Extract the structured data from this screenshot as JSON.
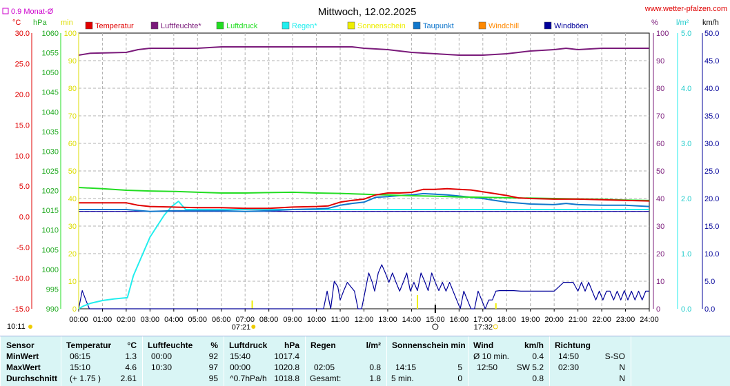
{
  "header": {
    "title": "Mittwoch, 12.02.2025",
    "site": "www.wetter-pfalzen.com",
    "month_avg_label": "0.9 Monat-Ø"
  },
  "colors": {
    "temperature": "#e00000",
    "humidity": "#7a1a7a",
    "pressure": "#22dd22",
    "rain": "#22eeee",
    "sunshine": "#eeee00",
    "dewpoint": "#1177cc",
    "windchill": "#ff8800",
    "gusts": "#000099",
    "wind": "#000099"
  },
  "legend": [
    {
      "key": "temperature",
      "label": "Temperatur"
    },
    {
      "key": "humidity",
      "label": "Luftfeuchte*"
    },
    {
      "key": "pressure",
      "label": "Luftdruck"
    },
    {
      "key": "rain",
      "label": "Regen*"
    },
    {
      "key": "sunshine",
      "label": "Sonnenschein"
    },
    {
      "key": "dewpoint",
      "label": "Taupunkt"
    },
    {
      "key": "windchill",
      "label": "Windchill"
    },
    {
      "key": "gusts",
      "label": "Windböen"
    }
  ],
  "axes": {
    "temp": {
      "unit": "°C",
      "min": -15,
      "max": 30,
      "ticks": [
        "30.0",
        "25.0",
        "20.0",
        "15.0",
        "10.0",
        "5.0",
        "0.0",
        "-5.0",
        "-10.0",
        "-15.0"
      ]
    },
    "pressure": {
      "unit": "hPa",
      "min": 990,
      "max": 1060,
      "ticks": [
        "1060",
        "1055",
        "1050",
        "1045",
        "1040",
        "1035",
        "1030",
        "1025",
        "1020",
        "1015",
        "1010",
        "1005",
        "1000",
        "995",
        "990"
      ]
    },
    "sun": {
      "unit": "min",
      "min": 0,
      "max": 100,
      "ticks": [
        "100",
        "90",
        "80",
        "70",
        "60",
        "50",
        "40",
        "30",
        "20",
        "10",
        "0"
      ]
    },
    "humidity": {
      "unit": "%",
      "min": 0,
      "max": 100,
      "ticks": [
        "100",
        "90",
        "80",
        "70",
        "60",
        "50",
        "40",
        "30",
        "20",
        "10",
        "0"
      ]
    },
    "rain": {
      "unit": "l/m²",
      "min": 0,
      "max": 5,
      "ticks": [
        "5.0",
        "4.0",
        "3.0",
        "2.0",
        "1.0",
        "0.0"
      ]
    },
    "wind": {
      "unit": "km/h",
      "min": 0,
      "max": 50,
      "ticks": [
        "50.0",
        "45.0",
        "40.0",
        "35.0",
        "30.0",
        "25.0",
        "20.0",
        "15.0",
        "10.0",
        "5.0",
        "0.0"
      ]
    },
    "time": {
      "min": 0,
      "max": 24,
      "ticks": [
        "00:00",
        "01:00",
        "02:00",
        "03:00",
        "04:00",
        "05:00",
        "06:00",
        "07:00",
        "08:00",
        "09:00",
        "10:00",
        "11:00",
        "12:00",
        "13:00",
        "14:00",
        "15:00",
        "16:00",
        "17:00",
        "18:00",
        "19:00",
        "20:00",
        "21:00",
        "22:00",
        "23:00",
        "24:00"
      ]
    }
  },
  "markers": {
    "moon_time": "10:11",
    "sunrise": "07:21",
    "sunset": "17:32"
  },
  "chart_data": {
    "type": "line",
    "x_unit": "hours",
    "month_avg_temp": 0.9,
    "series": [
      {
        "name": "Temperatur",
        "axis": "temp",
        "x": [
          0,
          1,
          2,
          2.5,
          3,
          4,
          5,
          6,
          7,
          8,
          9,
          10,
          10.5,
          11,
          11.5,
          12,
          12.5,
          13,
          13.5,
          14,
          14.5,
          15,
          15.5,
          16,
          16.5,
          17,
          17.5,
          18,
          18.5,
          19,
          20,
          21,
          22,
          23,
          24
        ],
        "y": [
          2.3,
          2.3,
          2.3,
          1.9,
          1.7,
          1.6,
          1.5,
          1.5,
          1.4,
          1.4,
          1.6,
          1.7,
          1.8,
          2.4,
          2.7,
          2.9,
          3.6,
          3.9,
          3.9,
          4.0,
          4.5,
          4.5,
          4.6,
          4.5,
          4.4,
          4.1,
          3.8,
          3.5,
          3.1,
          3.0,
          2.9,
          2.9,
          2.8,
          2.7,
          2.6
        ]
      },
      {
        "name": "Luftfeuchte*",
        "axis": "humidity",
        "x": [
          0,
          0.5,
          2,
          2.5,
          3,
          4,
          5,
          6,
          7,
          8,
          9,
          10,
          11,
          11.5,
          12,
          13,
          14,
          15,
          16,
          17,
          18,
          18.5,
          19,
          20,
          20.5,
          21,
          22,
          23,
          24
        ],
        "y": [
          92,
          92.7,
          93,
          94,
          94.5,
          94.5,
          94.5,
          95,
          95,
          95,
          95,
          95,
          95,
          95,
          94.5,
          94,
          93,
          92.5,
          92,
          92,
          92.5,
          93,
          93.5,
          94,
          94.5,
          94,
          94.5,
          94.5,
          94.5
        ]
      },
      {
        "name": "Luftdruck",
        "axis": "pressure",
        "x": [
          0,
          1,
          2,
          3,
          4,
          5,
          6,
          7,
          8,
          9,
          10,
          11,
          12,
          13,
          14,
          15,
          16,
          17,
          18,
          19,
          20,
          21,
          22,
          23,
          24
        ],
        "y": [
          1020.8,
          1020.5,
          1020.1,
          1019.9,
          1019.8,
          1019.6,
          1019.4,
          1019.4,
          1019.5,
          1019.6,
          1019.4,
          1019.3,
          1019.1,
          1018.9,
          1018.7,
          1018.6,
          1018.4,
          1018.3,
          1018.2,
          1018.1,
          1018.0,
          1017.9,
          1017.8,
          1017.6,
          1017.5
        ]
      },
      {
        "name": "Regen*",
        "axis": "rain",
        "x": [
          0,
          0.2,
          0.5,
          1,
          1.5,
          2,
          2.05,
          2.3,
          2.6,
          3,
          3.3,
          3.6,
          3.9,
          4.2,
          4.5,
          5,
          6,
          7,
          8,
          9,
          10,
          11,
          12,
          13,
          14,
          15,
          16,
          17,
          18,
          19,
          20,
          21,
          22,
          23,
          24
        ],
        "y": [
          0,
          0.05,
          0.1,
          0.15,
          0.18,
          0.2,
          0.2,
          0.6,
          0.9,
          1.3,
          1.5,
          1.7,
          1.85,
          1.95,
          1.8,
          1.8,
          1.8,
          1.8,
          1.8,
          1.8,
          1.8,
          1.8,
          1.8,
          1.8,
          1.8,
          1.8,
          1.8,
          1.8,
          1.8,
          1.8,
          1.8,
          1.8,
          1.8,
          1.8,
          1.8
        ]
      },
      {
        "name": "Taupunkt",
        "axis": "temp",
        "x": [
          0,
          1,
          2,
          3,
          4,
          5,
          6,
          7,
          8,
          9,
          10,
          10.5,
          11,
          11.5,
          12,
          12.5,
          13,
          13.5,
          14,
          14.5,
          15,
          15.5,
          16,
          17,
          17.5,
          18,
          19,
          20,
          20.5,
          21,
          22,
          23,
          24
        ],
        "y": [
          1.2,
          1.2,
          1.2,
          0.9,
          1.0,
          1.0,
          1.0,
          0.9,
          1.0,
          1.2,
          1.3,
          1.4,
          1.9,
          2.2,
          2.4,
          3.2,
          3.3,
          3.5,
          3.6,
          3.8,
          3.7,
          3.6,
          3.4,
          3.0,
          2.7,
          2.4,
          2.1,
          2.0,
          2.2,
          2.0,
          1.9,
          1.9,
          1.7
        ]
      },
      {
        "name": "Windchill",
        "axis": "temp",
        "x": [
          0,
          24
        ],
        "y": [
          0.9,
          0.9
        ]
      },
      {
        "name": "Windböen",
        "axis": "wind",
        "x": [
          0,
          0.15,
          0.3,
          0.45,
          0.6,
          10.3,
          10.45,
          10.6,
          10.75,
          10.9,
          11.0,
          11.15,
          11.3,
          11.45,
          11.6,
          11.75,
          11.9,
          12.05,
          12.2,
          12.35,
          12.45,
          12.6,
          12.75,
          12.9,
          13.05,
          13.2,
          13.35,
          13.5,
          13.65,
          13.8,
          13.95,
          14.1,
          14.25,
          14.4,
          14.55,
          14.7,
          14.85,
          15.0,
          15.15,
          15.3,
          15.45,
          15.6,
          15.75,
          15.9,
          16.05,
          16.2,
          16.35,
          16.5,
          16.65,
          16.8,
          16.95,
          17.1,
          17.25,
          17.4,
          17.55,
          17.7,
          18.0,
          18.3,
          18.6,
          18.9,
          19.2,
          19.6,
          20.0,
          20.4,
          20.8,
          21.0,
          21.15,
          21.3,
          21.45,
          21.6,
          21.75,
          21.9,
          22.05,
          22.2,
          22.35,
          22.5,
          22.65,
          22.8,
          22.95,
          23.1,
          23.25,
          23.4,
          23.55,
          23.7,
          23.85,
          24.0
        ],
        "y": [
          0,
          3.3,
          1.6,
          0,
          0,
          0,
          3.2,
          0,
          5.0,
          4.0,
          1.6,
          3.3,
          4.8,
          4.0,
          3.2,
          0,
          0,
          3.2,
          6.5,
          4.8,
          3.2,
          6.5,
          8.0,
          6.5,
          4.8,
          6.5,
          4.8,
          3.2,
          4.8,
          6.5,
          3.2,
          4.8,
          3.3,
          6.5,
          5.0,
          3.3,
          6.5,
          4.8,
          3.3,
          4.8,
          3.2,
          4.8,
          3.2,
          1.6,
          0,
          3.2,
          1.6,
          0,
          0,
          3.2,
          1.6,
          0,
          1.6,
          1.6,
          3.2,
          3.3,
          3.3,
          3.3,
          3.2,
          3.2,
          3.2,
          3.2,
          3.2,
          4.8,
          4.8,
          3.2,
          4.8,
          3.2,
          4.8,
          3.2,
          1.6,
          3.2,
          1.6,
          3.2,
          3.2,
          1.6,
          3.2,
          1.6,
          3.3,
          1.6,
          3.2,
          1.6,
          3.2,
          1.6,
          3.2,
          3.2
        ]
      }
    ],
    "sunshine_bars": [
      {
        "x": 7.3,
        "y": 3
      },
      {
        "x": 14.25,
        "y": 5
      },
      {
        "x": 17.55,
        "y": 2
      }
    ]
  },
  "stats": {
    "row_labels": [
      "Sensor",
      "MinWert",
      "MaxWert",
      "Durchschnitt"
    ],
    "temp": {
      "title": "Temperatur",
      "unit": "°C",
      "min_time": "06:15",
      "min": "1.3",
      "max_time": "15:10",
      "max": "4.6",
      "avg_delta": "(+ 1.75 )",
      "avg": "2.61"
    },
    "humidity": {
      "title": "Luftfeuchte",
      "unit": "%",
      "min_time": "00:00",
      "min": "92",
      "max_time": "10:30",
      "max": "97",
      "avg": "95"
    },
    "pressure": {
      "title": "Luftdruck",
      "unit": "hPa",
      "min_time": "15:40",
      "min": "1017.4",
      "max_time": "00:00",
      "max": "1020.8",
      "avg_trend": "^0.7hPa/h",
      "avg": "1018.8"
    },
    "rain": {
      "title": "Regen",
      "unit": "l/m²",
      "max_time": "02:05",
      "max": "0.8",
      "total_label": "Gesamt:",
      "total": "1.8"
    },
    "sun": {
      "title": "Sonnenschein min",
      "max_time": "14:15",
      "max": "5",
      "avg_label": "5 min.",
      "avg": "0"
    },
    "wind": {
      "title": "Wind",
      "unit": "km/h",
      "min_label": "Ø 10 min.",
      "min": "0.4",
      "max_time": "12:50",
      "max": "SW 5.2",
      "avg": "0.8"
    },
    "direction": {
      "title": "Richtung",
      "min_time": "14:50",
      "min": "S-SO",
      "max_time": "02:30",
      "max": "N",
      "avg": "N"
    }
  }
}
